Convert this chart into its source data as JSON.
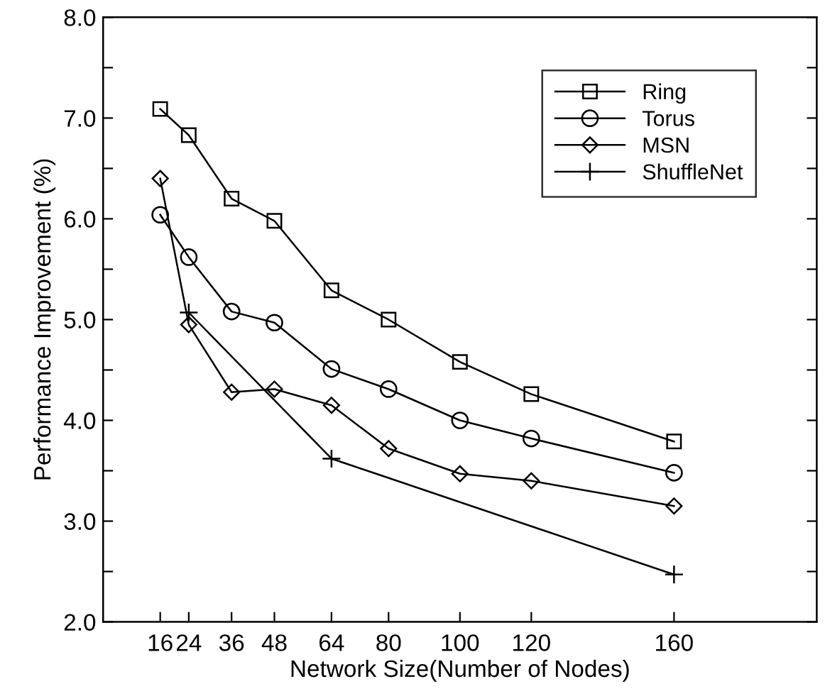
{
  "chart_data": {
    "type": "line",
    "xlabel": "Network Size(Number of Nodes)",
    "ylabel": "Performance Improvement (%)",
    "xlim": [
      0,
      200
    ],
    "ylim": [
      2.0,
      8.0
    ],
    "xticks": [
      16,
      24,
      36,
      48,
      64,
      80,
      100,
      120,
      160
    ],
    "yticks": [
      {
        "value": 2.0,
        "label": "2.0"
      },
      {
        "value": 2.5,
        "label": null
      },
      {
        "value": 3.0,
        "label": "3.0"
      },
      {
        "value": 3.5,
        "label": null
      },
      {
        "value": 4.0,
        "label": "4.0"
      },
      {
        "value": 4.5,
        "label": null
      },
      {
        "value": 5.0,
        "label": "5.0"
      },
      {
        "value": 5.5,
        "label": null
      },
      {
        "value": 6.0,
        "label": "6.0"
      },
      {
        "value": 6.5,
        "label": null
      },
      {
        "value": 7.0,
        "label": "7.0"
      },
      {
        "value": 7.5,
        "label": null
      },
      {
        "value": 8.0,
        "label": "8.0"
      }
    ],
    "grid": false,
    "legend": "top right",
    "line_style": "solid",
    "series": [
      {
        "name": "Ring",
        "color": "#000000",
        "marker": "square",
        "x": [
          16,
          24,
          36,
          48,
          64,
          80,
          100,
          120,
          160
        ],
        "values": [
          7.09,
          6.83,
          6.2,
          5.98,
          5.29,
          5.0,
          4.58,
          4.26,
          3.79
        ]
      },
      {
        "name": "Torus",
        "color": "#000000",
        "marker": "circle",
        "x": [
          16,
          24,
          36,
          48,
          64,
          80,
          100,
          120,
          160
        ],
        "values": [
          6.04,
          5.62,
          5.08,
          4.97,
          4.51,
          4.31,
          4.0,
          3.82,
          3.48
        ]
      },
      {
        "name": "MSN",
        "color": "#000000",
        "marker": "diamond",
        "x": [
          16,
          24,
          36,
          48,
          64,
          80,
          100,
          120,
          160
        ],
        "values": [
          6.4,
          4.95,
          4.28,
          4.31,
          4.15,
          3.72,
          3.47,
          3.4,
          3.15
        ]
      },
      {
        "name": "ShuffleNet",
        "color": "#000000",
        "marker": "cross",
        "x": [
          24,
          64,
          160
        ],
        "values": [
          5.07,
          3.62,
          2.47
        ]
      }
    ]
  }
}
